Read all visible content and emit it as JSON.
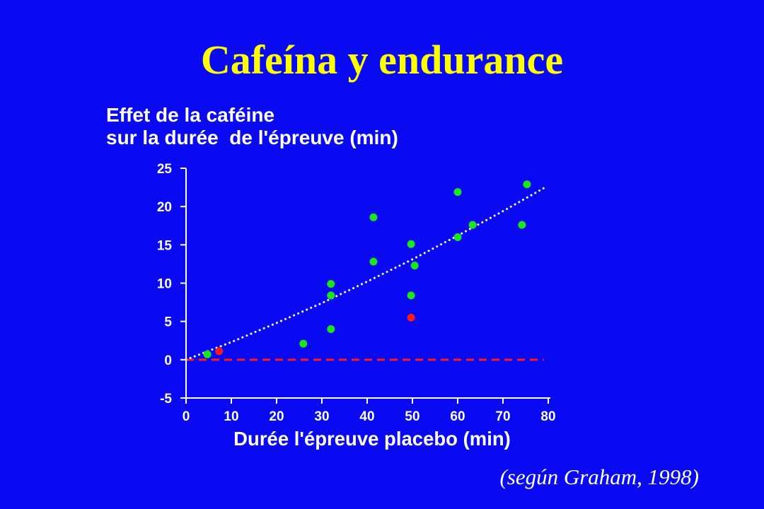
{
  "slide": {
    "title": "Cafeína y endurance",
    "source": "(según Graham, 1998)",
    "colors": {
      "background": "#0A0AF2",
      "title": "#FFFF00",
      "text": "#FFFFFF"
    }
  },
  "chart_data": {
    "type": "scatter",
    "title": [
      "Effet de la caféine",
      "sur la durée  de l'épreuve (min)"
    ],
    "xlabel": "Durée l'épreuve placebo (min)",
    "xlim": [
      0,
      80
    ],
    "ylim": [
      -5,
      25
    ],
    "xticks": [
      0,
      10,
      20,
      30,
      40,
      50,
      60,
      70,
      80
    ],
    "yticks": [
      25,
      20,
      15,
      10,
      5,
      0,
      -5
    ],
    "grid": false,
    "series": [
      {
        "color": "#1AE61A",
        "x": [
          4.7,
          25.9,
          32.0,
          32.0,
          32.0,
          41.4,
          41.4,
          49.7,
          50.5,
          49.7,
          60.0,
          60.0,
          63.3,
          74.2,
          75.3
        ],
        "y": [
          0.7,
          2.1,
          4.0,
          8.4,
          9.9,
          12.8,
          18.6,
          15.1,
          12.3,
          8.4,
          21.9,
          16.0,
          17.6,
          17.6,
          22.9
        ]
      },
      {
        "color": "#FF1A1A",
        "x": [
          7.3,
          49.7
        ],
        "y": [
          1.1,
          5.5
        ]
      }
    ],
    "reference_line": {
      "style": "dashed",
      "color": "#FF1A1A",
      "y": 0,
      "x": [
        0,
        79
      ]
    },
    "trendline": {
      "style": "dotted",
      "color": "#FFFFFF",
      "x": [
        0,
        10,
        20,
        30,
        40,
        50,
        60,
        70,
        79
      ],
      "y": [
        0,
        2.3,
        4.8,
        7.4,
        10.2,
        13.1,
        16.2,
        19.4,
        22.4
      ]
    }
  }
}
